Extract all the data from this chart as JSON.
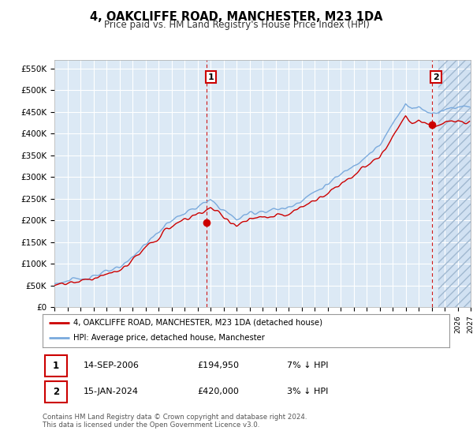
{
  "title": "4, OAKCLIFFE ROAD, MANCHESTER, M23 1DA",
  "subtitle": "Price paid vs. HM Land Registry's House Price Index (HPI)",
  "legend_label_red": "4, OAKCLIFFE ROAD, MANCHESTER, M23 1DA (detached house)",
  "legend_label_blue": "HPI: Average price, detached house, Manchester",
  "annotation1_label": "1",
  "annotation1_date": "14-SEP-2006",
  "annotation1_price": "£194,950",
  "annotation1_hpi": "7% ↓ HPI",
  "annotation2_label": "2",
  "annotation2_date": "15-JAN-2024",
  "annotation2_price": "£420,000",
  "annotation2_hpi": "3% ↓ HPI",
  "footer": "Contains HM Land Registry data © Crown copyright and database right 2024.\nThis data is licensed under the Open Government Licence v3.0.",
  "ylim": [
    0,
    570000
  ],
  "yticks": [
    0,
    50000,
    100000,
    150000,
    200000,
    250000,
    300000,
    350000,
    400000,
    450000,
    500000,
    550000
  ],
  "ytick_labels": [
    "£0",
    "£50K",
    "£100K",
    "£150K",
    "£200K",
    "£250K",
    "£300K",
    "£350K",
    "£400K",
    "£450K",
    "£500K",
    "£550K"
  ],
  "background_color": "#dce9f5",
  "red_color": "#cc0000",
  "blue_color": "#7aaadd",
  "grid_color": "#ffffff",
  "sale1_year": 2006.71,
  "sale1_price": 194950,
  "sale2_year": 2024.04,
  "sale2_price": 420000,
  "xstart": 1995,
  "xend": 2027
}
